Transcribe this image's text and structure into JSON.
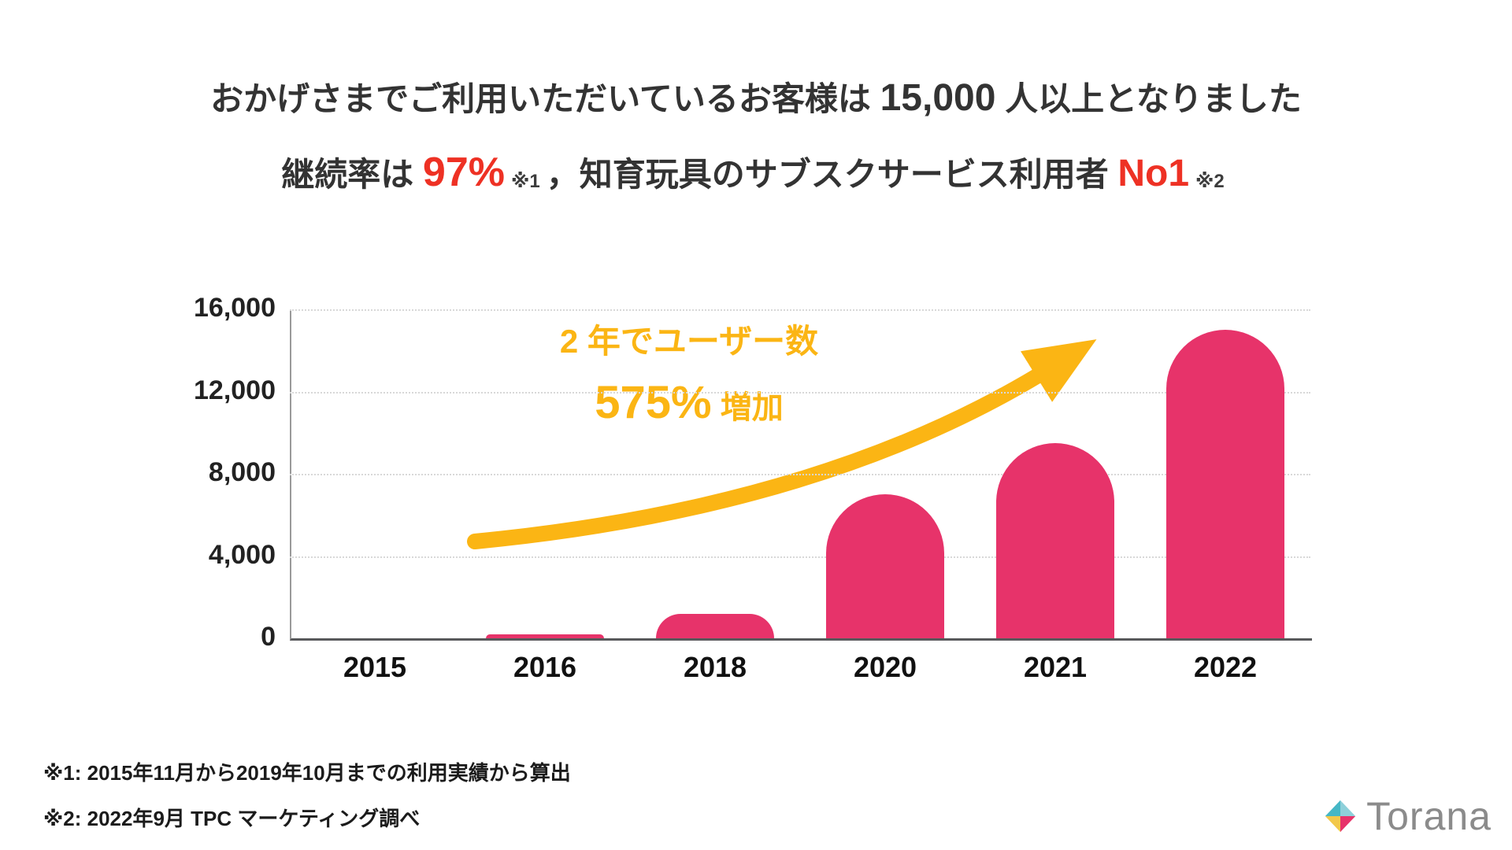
{
  "title": {
    "line1_pre": "おかげさまでご利用いただいているお客様は ",
    "line1_num": "15,000",
    "line1_post": " 人以上となりました",
    "line2_pre": "継続率は ",
    "line2_rate": "97%",
    "line2_note1": "※1",
    "line2_mid": "，知育玩具のサブスクサービス利用者 ",
    "line2_no1": "No1",
    "line2_note2": "※2"
  },
  "chart_data": {
    "type": "bar",
    "title": "",
    "categories": [
      "2015",
      "2016",
      "2018",
      "2020",
      "2021",
      "2022"
    ],
    "values": [
      0,
      200,
      1200,
      7000,
      9500,
      15000
    ],
    "xlabel": "",
    "ylabel": "",
    "ylim": [
      0,
      16000
    ],
    "yticks": [
      0,
      4000,
      8000,
      12000,
      16000
    ],
    "ytick_labels": [
      "0",
      "4,000",
      "8,000",
      "12,000",
      "16,000"
    ],
    "bar_color": "#E7336A",
    "grid": true,
    "legend": false,
    "annotation": {
      "line1": "2 年でユーザー数",
      "value": "575%",
      "suffix": " 増加",
      "color": "#FBB514"
    }
  },
  "footnotes": [
    "※1: 2015年11月から2019年10月までの利用実績から算出",
    "※2: 2022年9月 TPC マーケティング調べ"
  ],
  "logo": {
    "text": "Torana"
  },
  "colors": {
    "accent_red": "#EE3124",
    "text_dark": "#333333",
    "bar": "#E7336A",
    "arrow_yellow": "#FBB514"
  }
}
